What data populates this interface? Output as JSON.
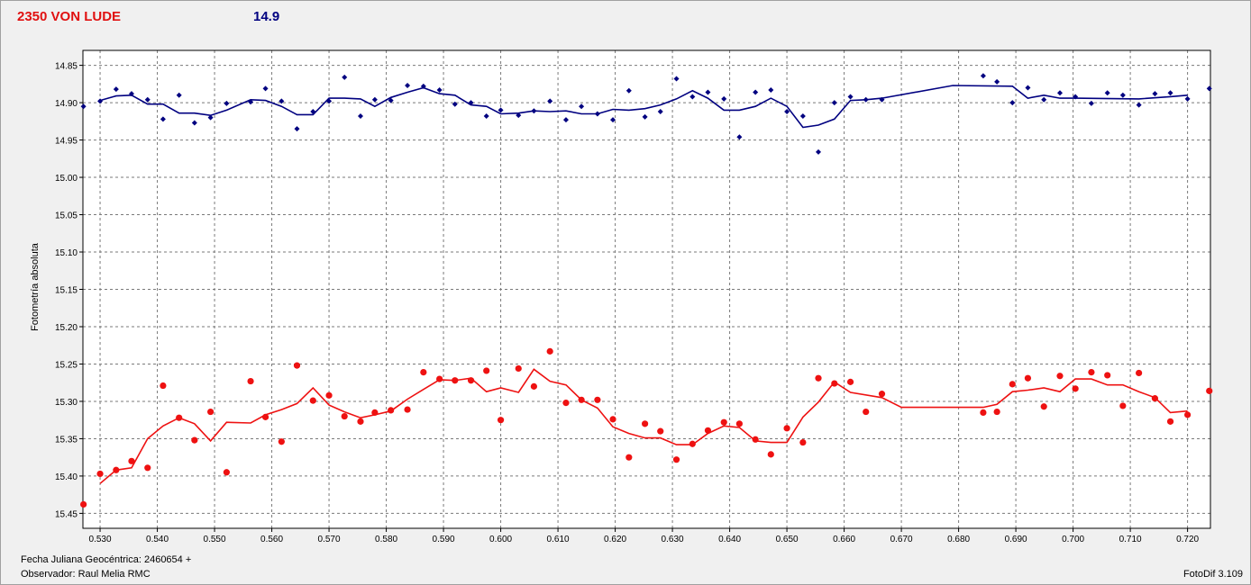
{
  "header": {
    "title": "2350 VON LUDE",
    "magnitude": "14.9"
  },
  "footer": {
    "date_label": "Fecha Juliana Geocéntrica: 2460654 +",
    "observer": "Observador: Raul Melia RMC",
    "software": "FotoDif 3.109"
  },
  "colors": {
    "blue": "#000080",
    "red": "#ee1111",
    "background": "#f0f0f0",
    "grid": "#808080"
  },
  "chart_data": {
    "type": "scatter",
    "ylabel": "Fotometría absoluta",
    "xlabel": "",
    "xlim": [
      0.527,
      0.724
    ],
    "ylim": [
      15.47,
      14.83
    ],
    "y_inverted": true,
    "grid": true,
    "x_ticks": [
      "0.530",
      "0.540",
      "0.550",
      "0.560",
      "0.570",
      "0.580",
      "0.590",
      "0.600",
      "0.610",
      "0.620",
      "0.630",
      "0.640",
      "0.650",
      "0.660",
      "0.670",
      "0.680",
      "0.690",
      "0.700",
      "0.710",
      "0.720"
    ],
    "x_tick_values": [
      0.53,
      0.54,
      0.55,
      0.56,
      0.57,
      0.58,
      0.59,
      0.6,
      0.61,
      0.62,
      0.63,
      0.64,
      0.65,
      0.66,
      0.67,
      0.68,
      0.69,
      0.7,
      0.71,
      0.72
    ],
    "y_ticks": [
      "14.85",
      "14.90",
      "14.95",
      "15.00",
      "15.05",
      "15.10",
      "15.15",
      "15.20",
      "15.25",
      "15.30",
      "15.35",
      "15.40",
      "15.45"
    ],
    "y_tick_values": [
      14.85,
      14.9,
      14.95,
      15.0,
      15.05,
      15.1,
      15.15,
      15.2,
      15.25,
      15.3,
      15.35,
      15.4,
      15.45
    ],
    "series": [
      {
        "color": "#000080",
        "marker": "diamond",
        "points": [
          [
            0.5271,
            14.905
          ],
          [
            0.53,
            14.898
          ],
          [
            0.5328,
            14.882
          ],
          [
            0.5355,
            14.888
          ],
          [
            0.5383,
            14.896
          ],
          [
            0.541,
            14.922
          ],
          [
            0.5438,
            14.89
          ],
          [
            0.5465,
            14.927
          ],
          [
            0.5493,
            14.92
          ],
          [
            0.5521,
            14.901
          ],
          [
            0.5563,
            14.899
          ],
          [
            0.5589,
            14.881
          ],
          [
            0.5617,
            14.898
          ],
          [
            0.5644,
            14.935
          ],
          [
            0.5672,
            14.912
          ],
          [
            0.57,
            14.898
          ],
          [
            0.5727,
            14.866
          ],
          [
            0.5755,
            14.918
          ],
          [
            0.578,
            14.896
          ],
          [
            0.5808,
            14.897
          ],
          [
            0.5837,
            14.877
          ],
          [
            0.5865,
            14.878
          ],
          [
            0.5893,
            14.883
          ],
          [
            0.592,
            14.902
          ],
          [
            0.5948,
            14.9
          ],
          [
            0.5975,
            14.918
          ],
          [
            0.6,
            14.91
          ],
          [
            0.6031,
            14.917
          ],
          [
            0.6058,
            14.911
          ],
          [
            0.6086,
            14.898
          ],
          [
            0.6114,
            14.923
          ],
          [
            0.6141,
            14.905
          ],
          [
            0.6169,
            14.915
          ],
          [
            0.6196,
            14.923
          ],
          [
            0.6224,
            14.884
          ],
          [
            0.6252,
            14.919
          ],
          [
            0.6279,
            14.912
          ],
          [
            0.6307,
            14.868
          ],
          [
            0.6335,
            14.892
          ],
          [
            0.6362,
            14.886
          ],
          [
            0.639,
            14.895
          ],
          [
            0.6417,
            14.946
          ],
          [
            0.6445,
            14.886
          ],
          [
            0.6472,
            14.883
          ],
          [
            0.65,
            14.912
          ],
          [
            0.6528,
            14.918
          ],
          [
            0.6555,
            14.966
          ],
          [
            0.6583,
            14.9
          ],
          [
            0.6611,
            14.892
          ],
          [
            0.6638,
            14.896
          ],
          [
            0.6666,
            14.896
          ],
          [
            0.6843,
            14.864
          ],
          [
            0.6867,
            14.872
          ],
          [
            0.6894,
            14.9
          ],
          [
            0.6921,
            14.88
          ],
          [
            0.6949,
            14.896
          ],
          [
            0.6977,
            14.887
          ],
          [
            0.7004,
            14.892
          ],
          [
            0.7032,
            14.901
          ],
          [
            0.706,
            14.887
          ],
          [
            0.7087,
            14.89
          ],
          [
            0.7115,
            14.903
          ],
          [
            0.7143,
            14.888
          ],
          [
            0.717,
            14.887
          ],
          [
            0.72,
            14.895
          ],
          [
            0.7238,
            14.881
          ]
        ],
        "smooth": [
          [
            0.53,
            14.897
          ],
          [
            0.5328,
            14.891
          ],
          [
            0.5355,
            14.89
          ],
          [
            0.5383,
            14.902
          ],
          [
            0.541,
            14.902
          ],
          [
            0.5438,
            14.914
          ],
          [
            0.5465,
            14.914
          ],
          [
            0.5493,
            14.917
          ],
          [
            0.5521,
            14.91
          ],
          [
            0.5563,
            14.896
          ],
          [
            0.5589,
            14.897
          ],
          [
            0.5617,
            14.905
          ],
          [
            0.5644,
            14.916
          ],
          [
            0.5672,
            14.916
          ],
          [
            0.57,
            14.894
          ],
          [
            0.5727,
            14.894
          ],
          [
            0.5755,
            14.895
          ],
          [
            0.578,
            14.905
          ],
          [
            0.5808,
            14.893
          ],
          [
            0.5837,
            14.886
          ],
          [
            0.5865,
            14.88
          ],
          [
            0.5893,
            14.888
          ],
          [
            0.592,
            14.89
          ],
          [
            0.5948,
            14.903
          ],
          [
            0.5975,
            14.905
          ],
          [
            0.6,
            14.915
          ],
          [
            0.6031,
            14.914
          ],
          [
            0.6058,
            14.911
          ],
          [
            0.6086,
            14.912
          ],
          [
            0.6114,
            14.911
          ],
          [
            0.6141,
            14.915
          ],
          [
            0.6169,
            14.915
          ],
          [
            0.6196,
            14.909
          ],
          [
            0.6224,
            14.91
          ],
          [
            0.6252,
            14.908
          ],
          [
            0.6279,
            14.903
          ],
          [
            0.6307,
            14.895
          ],
          [
            0.6335,
            14.884
          ],
          [
            0.6362,
            14.894
          ],
          [
            0.639,
            14.91
          ],
          [
            0.6417,
            14.91
          ],
          [
            0.6445,
            14.905
          ],
          [
            0.6472,
            14.894
          ],
          [
            0.65,
            14.905
          ],
          [
            0.6528,
            14.933
          ],
          [
            0.6555,
            14.93
          ],
          [
            0.6583,
            14.922
          ],
          [
            0.6611,
            14.897
          ],
          [
            0.6638,
            14.896
          ],
          [
            0.6666,
            14.894
          ],
          [
            0.679,
            14.877
          ],
          [
            0.6894,
            14.878
          ],
          [
            0.6921,
            14.894
          ],
          [
            0.6949,
            14.89
          ],
          [
            0.6977,
            14.894
          ],
          [
            0.7004,
            14.894
          ],
          [
            0.7115,
            14.895
          ],
          [
            0.717,
            14.892
          ],
          [
            0.72,
            14.89
          ]
        ]
      },
      {
        "color": "#ee1111",
        "marker": "circle",
        "points": [
          [
            0.5271,
            15.438
          ],
          [
            0.53,
            15.397
          ],
          [
            0.5328,
            15.392
          ],
          [
            0.5355,
            15.38
          ],
          [
            0.5383,
            15.389
          ],
          [
            0.541,
            15.279
          ],
          [
            0.5438,
            15.322
          ],
          [
            0.5465,
            15.352
          ],
          [
            0.5493,
            15.314
          ],
          [
            0.5521,
            15.395
          ],
          [
            0.5563,
            15.273
          ],
          [
            0.5589,
            15.321
          ],
          [
            0.5617,
            15.354
          ],
          [
            0.5644,
            15.252
          ],
          [
            0.5672,
            15.299
          ],
          [
            0.57,
            15.292
          ],
          [
            0.5727,
            15.32
          ],
          [
            0.5755,
            15.327
          ],
          [
            0.578,
            15.315
          ],
          [
            0.5808,
            15.312
          ],
          [
            0.5837,
            15.311
          ],
          [
            0.5865,
            15.261
          ],
          [
            0.5893,
            15.27
          ],
          [
            0.592,
            15.272
          ],
          [
            0.5948,
            15.272
          ],
          [
            0.5975,
            15.259
          ],
          [
            0.6,
            15.325
          ],
          [
            0.6031,
            15.256
          ],
          [
            0.6058,
            15.28
          ],
          [
            0.6086,
            15.233
          ],
          [
            0.6114,
            15.302
          ],
          [
            0.6141,
            15.298
          ],
          [
            0.6169,
            15.298
          ],
          [
            0.6196,
            15.324
          ],
          [
            0.6224,
            15.375
          ],
          [
            0.6252,
            15.33
          ],
          [
            0.6279,
            15.34
          ],
          [
            0.6307,
            15.378
          ],
          [
            0.6335,
            15.357
          ],
          [
            0.6362,
            15.339
          ],
          [
            0.639,
            15.328
          ],
          [
            0.6417,
            15.33
          ],
          [
            0.6445,
            15.351
          ],
          [
            0.6472,
            15.371
          ],
          [
            0.65,
            15.336
          ],
          [
            0.6528,
            15.355
          ],
          [
            0.6555,
            15.269
          ],
          [
            0.6583,
            15.276
          ],
          [
            0.6611,
            15.274
          ],
          [
            0.6638,
            15.314
          ],
          [
            0.6666,
            15.29
          ],
          [
            0.6843,
            15.315
          ],
          [
            0.6867,
            15.314
          ],
          [
            0.6894,
            15.277
          ],
          [
            0.6921,
            15.269
          ],
          [
            0.6949,
            15.307
          ],
          [
            0.6977,
            15.266
          ],
          [
            0.7004,
            15.283
          ],
          [
            0.7032,
            15.261
          ],
          [
            0.706,
            15.265
          ],
          [
            0.7087,
            15.306
          ],
          [
            0.7115,
            15.262
          ],
          [
            0.7143,
            15.296
          ],
          [
            0.717,
            15.327
          ],
          [
            0.72,
            15.318
          ],
          [
            0.7238,
            15.286
          ]
        ],
        "smooth": [
          [
            0.53,
            15.41
          ],
          [
            0.5328,
            15.392
          ],
          [
            0.5355,
            15.389
          ],
          [
            0.5383,
            15.35
          ],
          [
            0.541,
            15.333
          ],
          [
            0.5438,
            15.322
          ],
          [
            0.5465,
            15.33
          ],
          [
            0.5493,
            15.353
          ],
          [
            0.5521,
            15.328
          ],
          [
            0.5563,
            15.329
          ],
          [
            0.5589,
            15.318
          ],
          [
            0.5617,
            15.311
          ],
          [
            0.5644,
            15.303
          ],
          [
            0.5672,
            15.282
          ],
          [
            0.57,
            15.305
          ],
          [
            0.5727,
            15.314
          ],
          [
            0.5755,
            15.322
          ],
          [
            0.578,
            15.318
          ],
          [
            0.5808,
            15.313
          ],
          [
            0.5837,
            15.297
          ],
          [
            0.5865,
            15.284
          ],
          [
            0.5893,
            15.271
          ],
          [
            0.592,
            15.272
          ],
          [
            0.5948,
            15.269
          ],
          [
            0.5975,
            15.287
          ],
          [
            0.6,
            15.282
          ],
          [
            0.6031,
            15.288
          ],
          [
            0.6058,
            15.257
          ],
          [
            0.6086,
            15.273
          ],
          [
            0.6114,
            15.278
          ],
          [
            0.6141,
            15.298
          ],
          [
            0.6169,
            15.309
          ],
          [
            0.6196,
            15.334
          ],
          [
            0.6224,
            15.343
          ],
          [
            0.6252,
            15.349
          ],
          [
            0.6279,
            15.349
          ],
          [
            0.6307,
            15.358
          ],
          [
            0.6335,
            15.358
          ],
          [
            0.6362,
            15.343
          ],
          [
            0.639,
            15.333
          ],
          [
            0.6417,
            15.335
          ],
          [
            0.6445,
            15.353
          ],
          [
            0.6472,
            15.355
          ],
          [
            0.65,
            15.355
          ],
          [
            0.6528,
            15.321
          ],
          [
            0.6555,
            15.301
          ],
          [
            0.6583,
            15.274
          ],
          [
            0.6611,
            15.288
          ],
          [
            0.6666,
            15.295
          ],
          [
            0.67,
            15.308
          ],
          [
            0.6843,
            15.308
          ],
          [
            0.6867,
            15.304
          ],
          [
            0.6894,
            15.287
          ],
          [
            0.6921,
            15.285
          ],
          [
            0.6949,
            15.282
          ],
          [
            0.6977,
            15.287
          ],
          [
            0.7004,
            15.27
          ],
          [
            0.7032,
            15.27
          ],
          [
            0.706,
            15.278
          ],
          [
            0.7087,
            15.278
          ],
          [
            0.7115,
            15.287
          ],
          [
            0.7143,
            15.295
          ],
          [
            0.717,
            15.315
          ],
          [
            0.72,
            15.313
          ]
        ]
      }
    ]
  }
}
